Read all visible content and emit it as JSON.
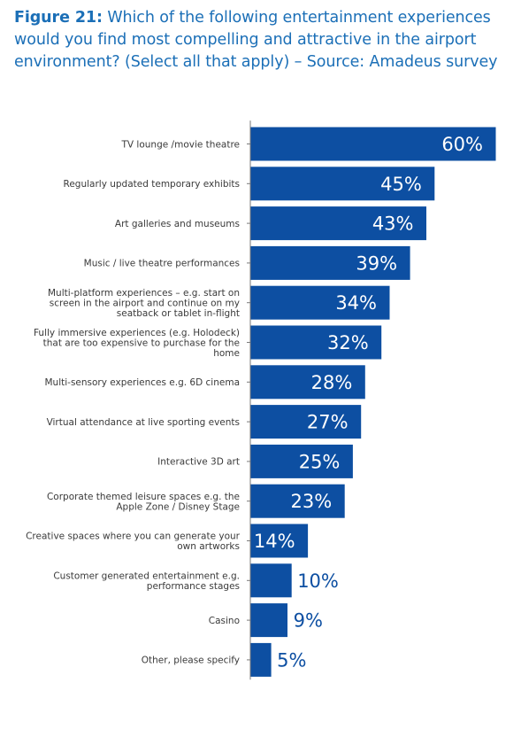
{
  "title": {
    "figure": "Figure 21:",
    "text": " Which of the following entertainment experiences would you find most compelling and attractive in the airport environment? (Select all that apply) – Source: Amadeus survey"
  },
  "colors": {
    "bar": "#0d4fa2",
    "title": "#1b6fb7",
    "axis": "#7a7a7a",
    "value_inside": "#ffffff",
    "value_outside": "#0d4fa2"
  },
  "chart_data": {
    "type": "bar",
    "orientation": "horizontal",
    "categories": [
      [
        "TV lounge /movie theatre"
      ],
      [
        "Regularly updated temporary exhibits"
      ],
      [
        "Art galleries and museums"
      ],
      [
        "Music / live theatre performances"
      ],
      [
        "Multi-platform experiences – e.g. start on",
        "screen in the airport and continue on my",
        "seatback or tablet in-flight"
      ],
      [
        "Fully immersive experiences (e.g. Holodeck)",
        "that are too expensive to purchase for the",
        "home"
      ],
      [
        "Multi-sensory experiences e.g.  6D cinema"
      ],
      [
        "Virtual attendance at live sporting events"
      ],
      [
        "Interactive 3D art"
      ],
      [
        "Corporate themed leisure spaces e.g. the",
        "Apple Zone / Disney Stage"
      ],
      [
        "Creative spaces where you can generate your",
        "own artworks"
      ],
      [
        "Customer generated entertainment e.g.",
        "performance stages"
      ],
      [
        "Casino"
      ],
      [
        "Other, please specify"
      ]
    ],
    "values": [
      60,
      45,
      43,
      39,
      34,
      32,
      28,
      27,
      25,
      23,
      14,
      10,
      9,
      5
    ],
    "value_labels": [
      "60%",
      "45%",
      "43%",
      "39%",
      "34%",
      "32%",
      "28%",
      "27%",
      "25%",
      "23%",
      "14%",
      "10%",
      "9%",
      "5%"
    ],
    "value_unit": "%",
    "xlim": [
      0,
      60
    ],
    "grid": false,
    "legend": "none"
  }
}
